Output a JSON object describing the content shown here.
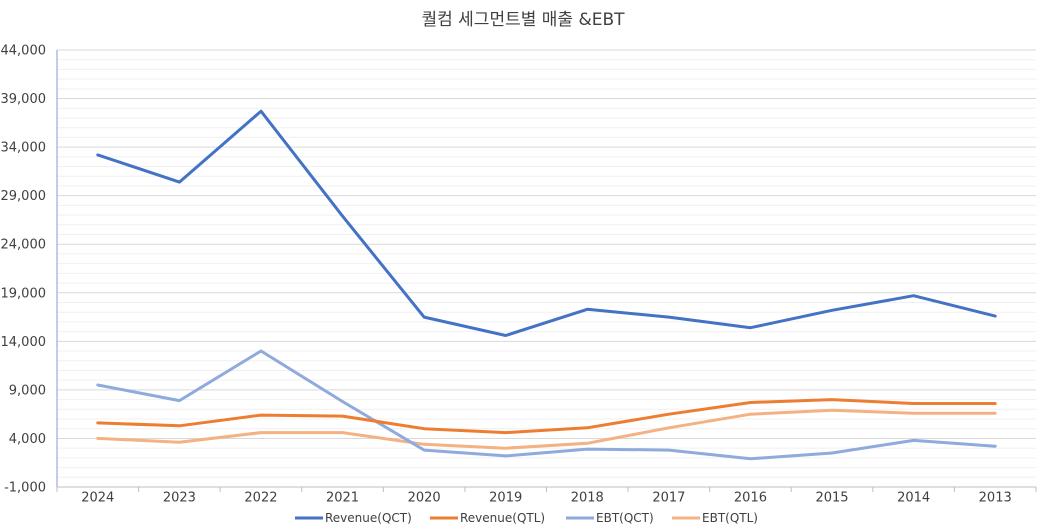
{
  "chart_data": {
    "type": "line",
    "title": "퀄컴 세그먼트별 매출 &EBT",
    "categories": [
      "2024",
      "2023",
      "2022",
      "2021",
      "2020",
      "2019",
      "2018",
      "2017",
      "2016",
      "2015",
      "2014",
      "2013"
    ],
    "y_ticks": [
      "44,000",
      "39,000",
      "34,000",
      "29,000",
      "24,000",
      "19,000",
      "14,000",
      "9,000",
      "4,000",
      "-1,000"
    ],
    "ylim": [
      -1000,
      44000
    ],
    "grid": true,
    "legend": "bottom",
    "series": [
      {
        "name": "Revenue(QCT)",
        "color": "#4472C4",
        "values": [
          33200,
          30400,
          37700,
          26900,
          16500,
          14600,
          17300,
          16500,
          15400,
          17200,
          18700,
          16600
        ]
      },
      {
        "name": "Revenue(QTL)",
        "color": "#ED7D31",
        "values": [
          5600,
          5300,
          6400,
          6300,
          5000,
          4600,
          5100,
          6500,
          7700,
          8000,
          7600,
          7600
        ]
      },
      {
        "name": "EBT(QCT)",
        "color": "#8FAADC",
        "values": [
          9500,
          7900,
          13000,
          7800,
          2800,
          2200,
          2900,
          2800,
          1900,
          2500,
          3800,
          3200
        ]
      },
      {
        "name": "EBT(QTL)",
        "color": "#F4B183",
        "values": [
          4000,
          3600,
          4600,
          4600,
          3400,
          3000,
          3500,
          5100,
          6500,
          6900,
          6600,
          6600
        ]
      }
    ]
  }
}
